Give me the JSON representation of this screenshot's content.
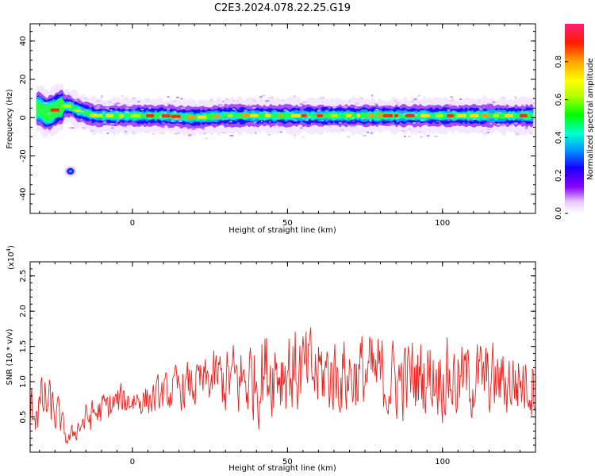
{
  "title": "C2E3.2024.078.22.25.G19",
  "chart_data": [
    {
      "type": "heatmap",
      "xlabel": "Height of straight line (km)",
      "ylabel": "Frequency (Hz)",
      "xlim": [
        -33,
        130
      ],
      "ylim": [
        -50,
        49
      ],
      "xticks": [
        0,
        50,
        100
      ],
      "yticks": [
        -40,
        -20,
        0,
        20,
        40
      ],
      "colorbar": {
        "label": "Normalized spectral amplitude",
        "range": [
          0,
          1
        ],
        "ticks": [
          "0.0",
          "0.2",
          "0.4",
          "0.6",
          "0.8"
        ]
      },
      "trace": {
        "x": [
          -32,
          -30,
          -28,
          -26,
          -24,
          -22,
          -20,
          -18,
          -16,
          -14,
          -12,
          -10,
          -5,
          0,
          10,
          20,
          30,
          40,
          50,
          60,
          70,
          80,
          90,
          100,
          110,
          120,
          130
        ],
        "y": [
          4,
          5,
          2,
          3,
          5,
          6,
          6,
          4,
          3,
          2,
          1,
          1,
          1,
          1,
          1,
          0,
          1,
          1,
          1,
          1,
          1,
          1,
          1,
          1,
          1,
          1,
          1
        ]
      },
      "blob": {
        "x": -20,
        "y": -28
      }
    },
    {
      "type": "line",
      "xlabel": "Height of straight line (km)",
      "ylabel": "SNR (10 * v/v)",
      "scale_note": "(x10",
      "scale_exp": "4",
      "scale_close": ")",
      "xlim": [
        -33,
        130
      ],
      "ylim": [
        0,
        2.7
      ],
      "xticks": [
        0,
        50,
        100
      ],
      "yticks": [
        "0.5",
        "1.0",
        "1.5",
        "2.0",
        "2.5"
      ],
      "series": [
        {
          "color": "#e8231f",
          "envelope_x": [
            -33,
            -28,
            -24,
            -21,
            -18,
            -14,
            -10,
            -5,
            0,
            5,
            10,
            15,
            20,
            25,
            27,
            30,
            35,
            40,
            45,
            50,
            55,
            60,
            65,
            70,
            75,
            80,
            85,
            90,
            95,
            100,
            105,
            110,
            115,
            120,
            125,
            130
          ],
          "envelope_mean": [
            0.6,
            0.7,
            0.5,
            0.15,
            0.35,
            0.5,
            0.6,
            0.7,
            0.75,
            0.75,
            0.8,
            0.9,
            0.95,
            1.0,
            1.05,
            1.0,
            1.0,
            1.1,
            1.2,
            1.2,
            1.1,
            1.1,
            1.1,
            1.1,
            1.1,
            1.05,
            1.0,
            1.05,
            1.1,
            1.1,
            1.0,
            1.05,
            1.0,
            1.0,
            1.0,
            1.0
          ],
          "envelope_amp": [
            0.5,
            0.6,
            0.4,
            0.15,
            0.25,
            0.35,
            0.35,
            0.35,
            0.35,
            0.35,
            0.4,
            0.45,
            0.5,
            0.5,
            0.6,
            0.75,
            0.85,
            0.95,
            0.95,
            1.0,
            0.9,
            0.9,
            0.85,
            0.85,
            0.85,
            0.85,
            0.8,
            0.85,
            0.85,
            0.85,
            0.8,
            0.8,
            0.75,
            0.75,
            0.75,
            0.7
          ]
        }
      ]
    }
  ]
}
